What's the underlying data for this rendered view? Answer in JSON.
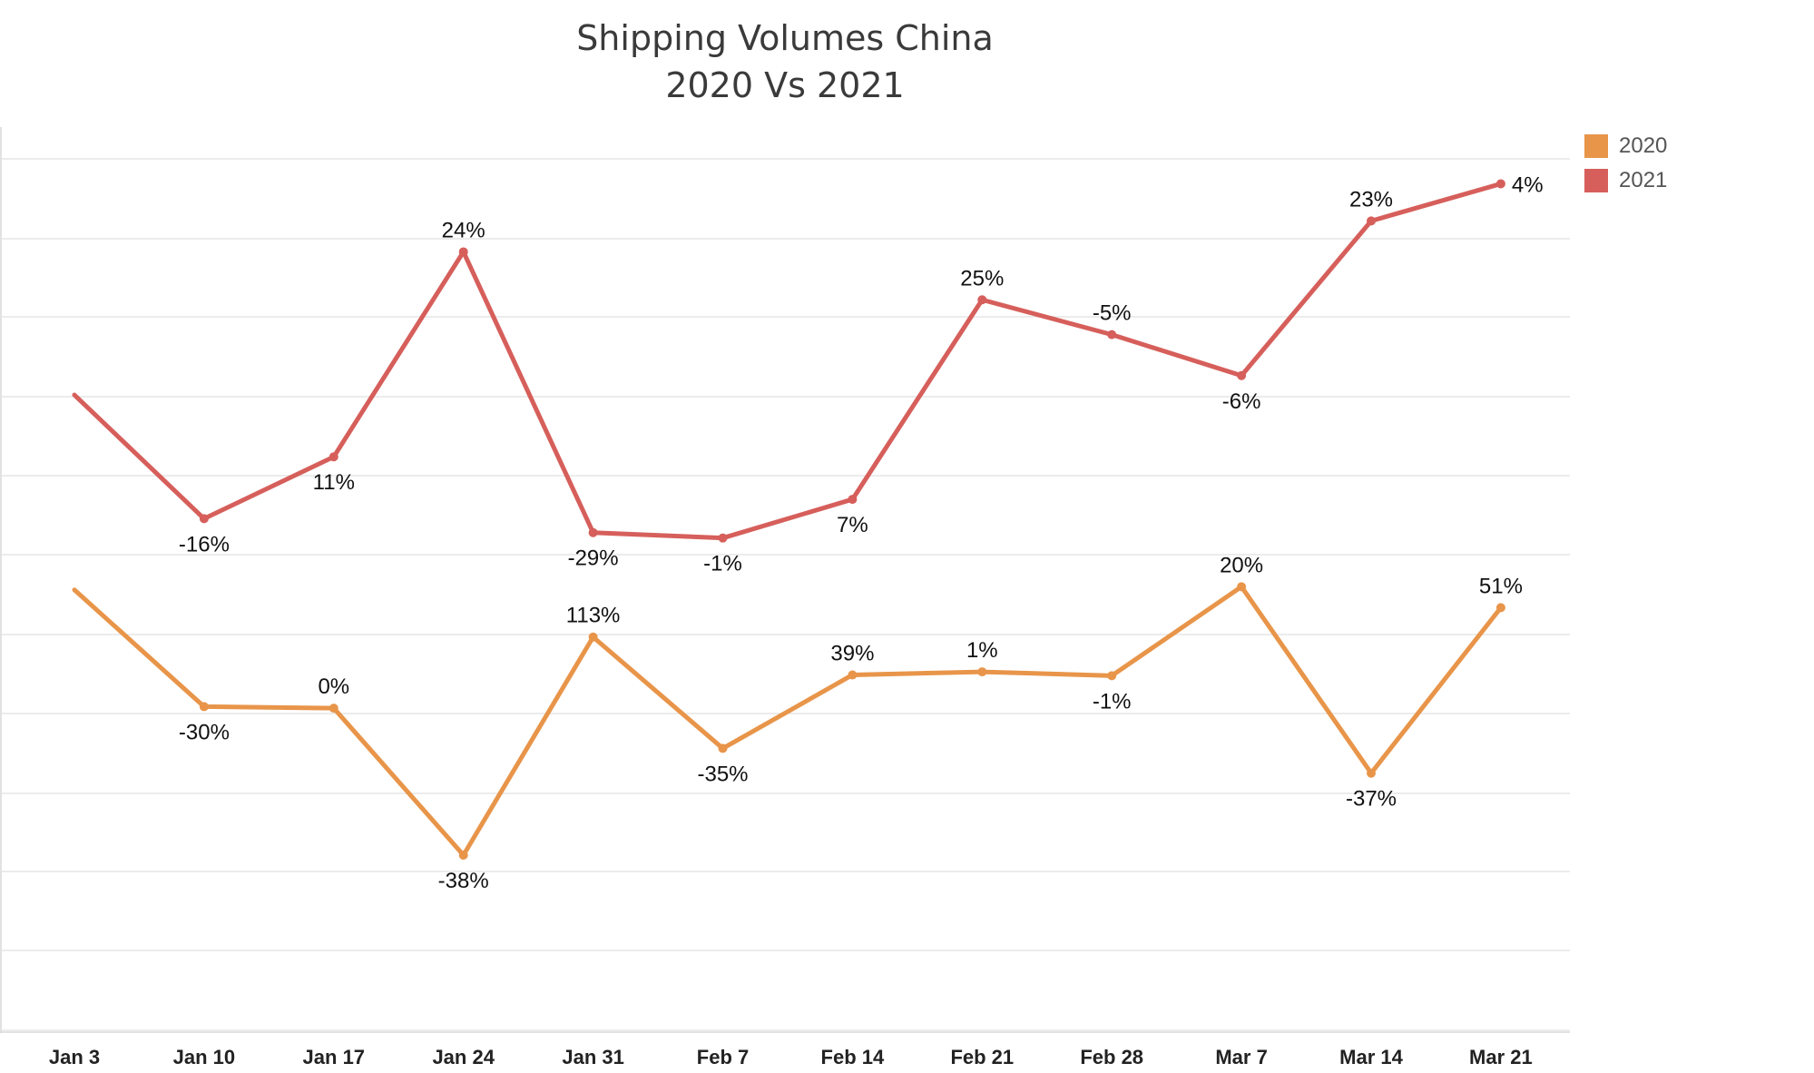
{
  "title": {
    "line1": "Shipping Volumes China",
    "line2": "2020 Vs 2021"
  },
  "legend": {
    "items": [
      {
        "label": "2020",
        "color": "#E8954A"
      },
      {
        "label": "2021",
        "color": "#D65F5B"
      }
    ]
  },
  "chart_data": {
    "type": "line",
    "title": "Shipping Volumes China 2020 Vs 2021",
    "categories": [
      "Jan 3",
      "Jan 10",
      "Jan 17",
      "Jan 24",
      "Jan 31",
      "Feb 7",
      "Feb 14",
      "Feb 21",
      "Feb 28",
      "Mar 7",
      "Mar 14",
      "Mar 21"
    ],
    "grid": true,
    "legend_position": "top-right",
    "series": [
      {
        "name": "2021",
        "color": "#D65F5B",
        "relative_level": [
          0.595,
          0.435,
          0.515,
          0.78,
          0.417,
          0.41,
          0.46,
          0.718,
          0.673,
          0.62,
          0.82,
          0.868
        ],
        "labels": [
          "",
          "-16%",
          "11%",
          "24%",
          "-29%",
          "-1%",
          "7%",
          "25%",
          "-5%",
          "-6%",
          "23%",
          "4%"
        ],
        "label_side": [
          "",
          "below",
          "below",
          "above",
          "below",
          "below",
          "below",
          "above",
          "above",
          "below",
          "above",
          "right"
        ]
      },
      {
        "name": "2020",
        "color": "#E8954A",
        "relative_level": [
          0.343,
          0.192,
          0.19,
          -0.0,
          0.282,
          0.138,
          0.233,
          0.237,
          0.232,
          0.347,
          0.106,
          0.32
        ],
        "labels": [
          "",
          "-30%",
          "0%",
          "-38%",
          "113%",
          "-35%",
          "39%",
          "1%",
          "-1%",
          "20%",
          "-37%",
          "51%"
        ],
        "label_side": [
          "",
          "below",
          "above",
          "below",
          "above",
          "below",
          "above",
          "above",
          "below",
          "above",
          "below",
          "above"
        ]
      }
    ]
  }
}
